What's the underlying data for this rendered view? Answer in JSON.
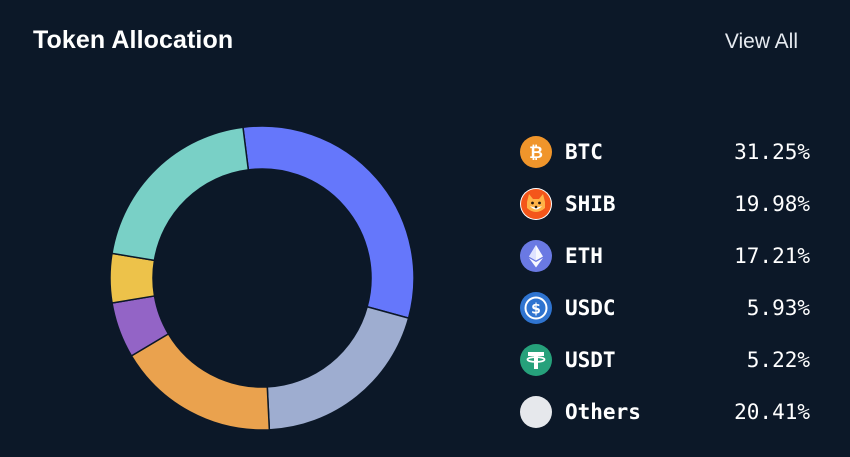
{
  "header": {
    "title": "Token Allocation",
    "view_all_label": "View All"
  },
  "chart_data": {
    "type": "pie",
    "style": "donut",
    "title": "Token Allocation",
    "categories": [
      "BTC",
      "SHIB",
      "ETH",
      "USDC",
      "USDT",
      "Others"
    ],
    "values": [
      31.25,
      19.98,
      17.21,
      5.93,
      5.22,
      20.41
    ],
    "labels": [
      "31.25%",
      "19.98%",
      "17.21%",
      "5.93%",
      "5.22%",
      "20.41%"
    ],
    "colors": [
      "#6577fb",
      "#9eadd0",
      "#eaa24e",
      "#9364c6",
      "#edc24a",
      "#79d0c6"
    ],
    "legend_position": "right"
  },
  "legend": [
    {
      "symbol": "BTC",
      "percent": "31.25%",
      "icon": "btc-icon",
      "icon_color": "#f0952b"
    },
    {
      "symbol": "SHIB",
      "percent": "19.98%",
      "icon": "shib-icon",
      "icon_color": "#f4561a"
    },
    {
      "symbol": "ETH",
      "percent": "17.21%",
      "icon": "eth-icon",
      "icon_color": "#6a79e3"
    },
    {
      "symbol": "USDC",
      "percent": "5.93%",
      "icon": "usdc-icon",
      "icon_color": "#2f74d0"
    },
    {
      "symbol": "USDT",
      "percent": "5.22%",
      "icon": "usdt-icon",
      "icon_color": "#26a17b"
    },
    {
      "symbol": "Others",
      "percent": "20.41%",
      "icon": "others-icon",
      "icon_color": "#e6e8ec"
    }
  ],
  "colors": {
    "background": "#0c1828",
    "text": "#ffffff"
  }
}
